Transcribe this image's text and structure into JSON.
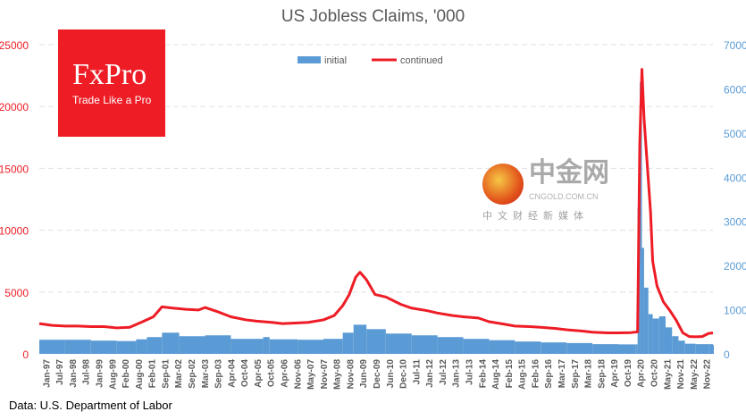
{
  "chart_data": {
    "type": "bar+line",
    "title": "US Jobless Claims, '000",
    "legend": [
      "initial",
      "continued"
    ],
    "legend_placement": "top-center",
    "colors": {
      "initial": "#5b9bd5",
      "continued": "#ee1c25",
      "left_axis": "#ee1c25",
      "right_axis": "#5b9bd5"
    },
    "left_axis": {
      "series": "continued",
      "ylim": [
        0,
        25000
      ],
      "ticks": [
        "0",
        "5000",
        "10000",
        "15000",
        "20000",
        "25000"
      ]
    },
    "right_axis": {
      "series": "initial",
      "ylim": [
        0,
        7000
      ],
      "ticks": [
        "0",
        "1000",
        "2000",
        "3000",
        "4000",
        "5000",
        "6000",
        "7000"
      ]
    },
    "grid": "horizontal dashed",
    "xlim": [
      "1997-01",
      "2023-02"
    ],
    "x_ticks": [
      "Jan-97",
      "Jul-97",
      "Jan-98",
      "Jul-98",
      "Jan-99",
      "Aug-99",
      "Feb-00",
      "Aug-00",
      "Feb-01",
      "Sep-01",
      "Mar-02",
      "Sep-02",
      "Mar-03",
      "Sep-03",
      "Apr-04",
      "Oct-04",
      "Apr-05",
      "Oct-05",
      "Apr-06",
      "Nov-06",
      "May-07",
      "Nov-07",
      "May-08",
      "Nov-08",
      "Jun-09",
      "Dec-09",
      "Jun-10",
      "Dec-10",
      "Jul-11",
      "Jan-12",
      "Jul-12",
      "Jan-13",
      "Jul-13",
      "Feb-14",
      "Aug-14",
      "Feb-15",
      "Aug-15",
      "Feb-16",
      "Sep-16",
      "Mar-17",
      "Sep-17",
      "Mar-18",
      "Sep-18",
      "Apr-19",
      "Oct-19",
      "Apr-20",
      "Oct-20",
      "May-21",
      "Nov-21",
      "May-22",
      "Nov-22"
    ],
    "series": [
      {
        "name": "initial",
        "type": "bar",
        "axis": "right",
        "points": [
          [
            "1997-01",
            320
          ],
          [
            "1998-01",
            320
          ],
          [
            "1999-01",
            300
          ],
          [
            "2000-01",
            290
          ],
          [
            "2000-10",
            330
          ],
          [
            "2001-03",
            380
          ],
          [
            "2001-10",
            480
          ],
          [
            "2002-06",
            400
          ],
          [
            "2003-06",
            420
          ],
          [
            "2004-06",
            340
          ],
          [
            "2005-09",
            380
          ],
          [
            "2005-12",
            330
          ],
          [
            "2007-01",
            320
          ],
          [
            "2008-01",
            340
          ],
          [
            "2008-10",
            480
          ],
          [
            "2009-03",
            660
          ],
          [
            "2009-09",
            560
          ],
          [
            "2010-06",
            460
          ],
          [
            "2011-06",
            420
          ],
          [
            "2012-06",
            380
          ],
          [
            "2013-06",
            340
          ],
          [
            "2014-06",
            310
          ],
          [
            "2015-06",
            280
          ],
          [
            "2016-06",
            260
          ],
          [
            "2017-06",
            245
          ],
          [
            "2018-06",
            220
          ],
          [
            "2019-06",
            215
          ],
          [
            "2020-02",
            215
          ],
          [
            "2020-03",
            3300
          ],
          [
            "2020-04",
            6150
          ],
          [
            "2020-05",
            2400
          ],
          [
            "2020-06",
            1500
          ],
          [
            "2020-08",
            900
          ],
          [
            "2020-10",
            800
          ],
          [
            "2021-01",
            850
          ],
          [
            "2021-04",
            600
          ],
          [
            "2021-07",
            400
          ],
          [
            "2021-10",
            300
          ],
          [
            "2022-01",
            230
          ],
          [
            "2022-06",
            220
          ],
          [
            "2022-12",
            220
          ],
          [
            "2023-02",
            200
          ]
        ]
      },
      {
        "name": "continued",
        "type": "line",
        "axis": "left",
        "points": [
          [
            "1997-01",
            2450
          ],
          [
            "1997-07",
            2300
          ],
          [
            "1998-01",
            2250
          ],
          [
            "1998-07",
            2250
          ],
          [
            "1999-01",
            2200
          ],
          [
            "1999-07",
            2200
          ],
          [
            "2000-01",
            2100
          ],
          [
            "2000-07",
            2150
          ],
          [
            "2001-01",
            2600
          ],
          [
            "2001-06",
            3000
          ],
          [
            "2001-10",
            3800
          ],
          [
            "2002-03",
            3700
          ],
          [
            "2002-09",
            3600
          ],
          [
            "2003-03",
            3550
          ],
          [
            "2003-06",
            3750
          ],
          [
            "2003-12",
            3400
          ],
          [
            "2004-06",
            3000
          ],
          [
            "2005-01",
            2750
          ],
          [
            "2005-06",
            2650
          ],
          [
            "2006-01",
            2550
          ],
          [
            "2006-06",
            2450
          ],
          [
            "2007-01",
            2500
          ],
          [
            "2007-06",
            2550
          ],
          [
            "2008-01",
            2750
          ],
          [
            "2008-06",
            3100
          ],
          [
            "2008-10",
            3900
          ],
          [
            "2009-01",
            4800
          ],
          [
            "2009-04",
            6200
          ],
          [
            "2009-06",
            6600
          ],
          [
            "2009-09",
            6000
          ],
          [
            "2010-01",
            4800
          ],
          [
            "2010-06",
            4600
          ],
          [
            "2011-01",
            4000
          ],
          [
            "2011-06",
            3700
          ],
          [
            "2012-01",
            3500
          ],
          [
            "2012-06",
            3300
          ],
          [
            "2013-01",
            3100
          ],
          [
            "2013-06",
            3000
          ],
          [
            "2014-01",
            2900
          ],
          [
            "2014-06",
            2600
          ],
          [
            "2015-01",
            2400
          ],
          [
            "2015-06",
            2250
          ],
          [
            "2016-01",
            2200
          ],
          [
            "2016-06",
            2150
          ],
          [
            "2017-01",
            2050
          ],
          [
            "2017-06",
            1950
          ],
          [
            "2018-01",
            1850
          ],
          [
            "2018-06",
            1750
          ],
          [
            "2019-01",
            1700
          ],
          [
            "2019-06",
            1700
          ],
          [
            "2019-12",
            1720
          ],
          [
            "2020-03",
            1780
          ],
          [
            "2020-04",
            17000
          ],
          [
            "2020-05",
            23000
          ],
          [
            "2020-06",
            19000
          ],
          [
            "2020-07",
            16500
          ],
          [
            "2020-08",
            14000
          ],
          [
            "2020-09",
            11500
          ],
          [
            "2020-10",
            7500
          ],
          [
            "2020-12",
            5500
          ],
          [
            "2021-03",
            4200
          ],
          [
            "2021-06",
            3500
          ],
          [
            "2021-09",
            2700
          ],
          [
            "2021-12",
            1700
          ],
          [
            "2022-03",
            1400
          ],
          [
            "2022-06",
            1380
          ],
          [
            "2022-09",
            1400
          ],
          [
            "2022-12",
            1650
          ],
          [
            "2023-02",
            1700
          ]
        ]
      }
    ]
  },
  "logo": {
    "brand": "FxPro",
    "tagline": "Trade Like a Pro"
  },
  "source": "Data: U.S. Department of Labor",
  "watermark": {
    "name": "中金网",
    "url": "CNGOLD.COM.CN",
    "subtitle": "中文财经新媒体"
  }
}
